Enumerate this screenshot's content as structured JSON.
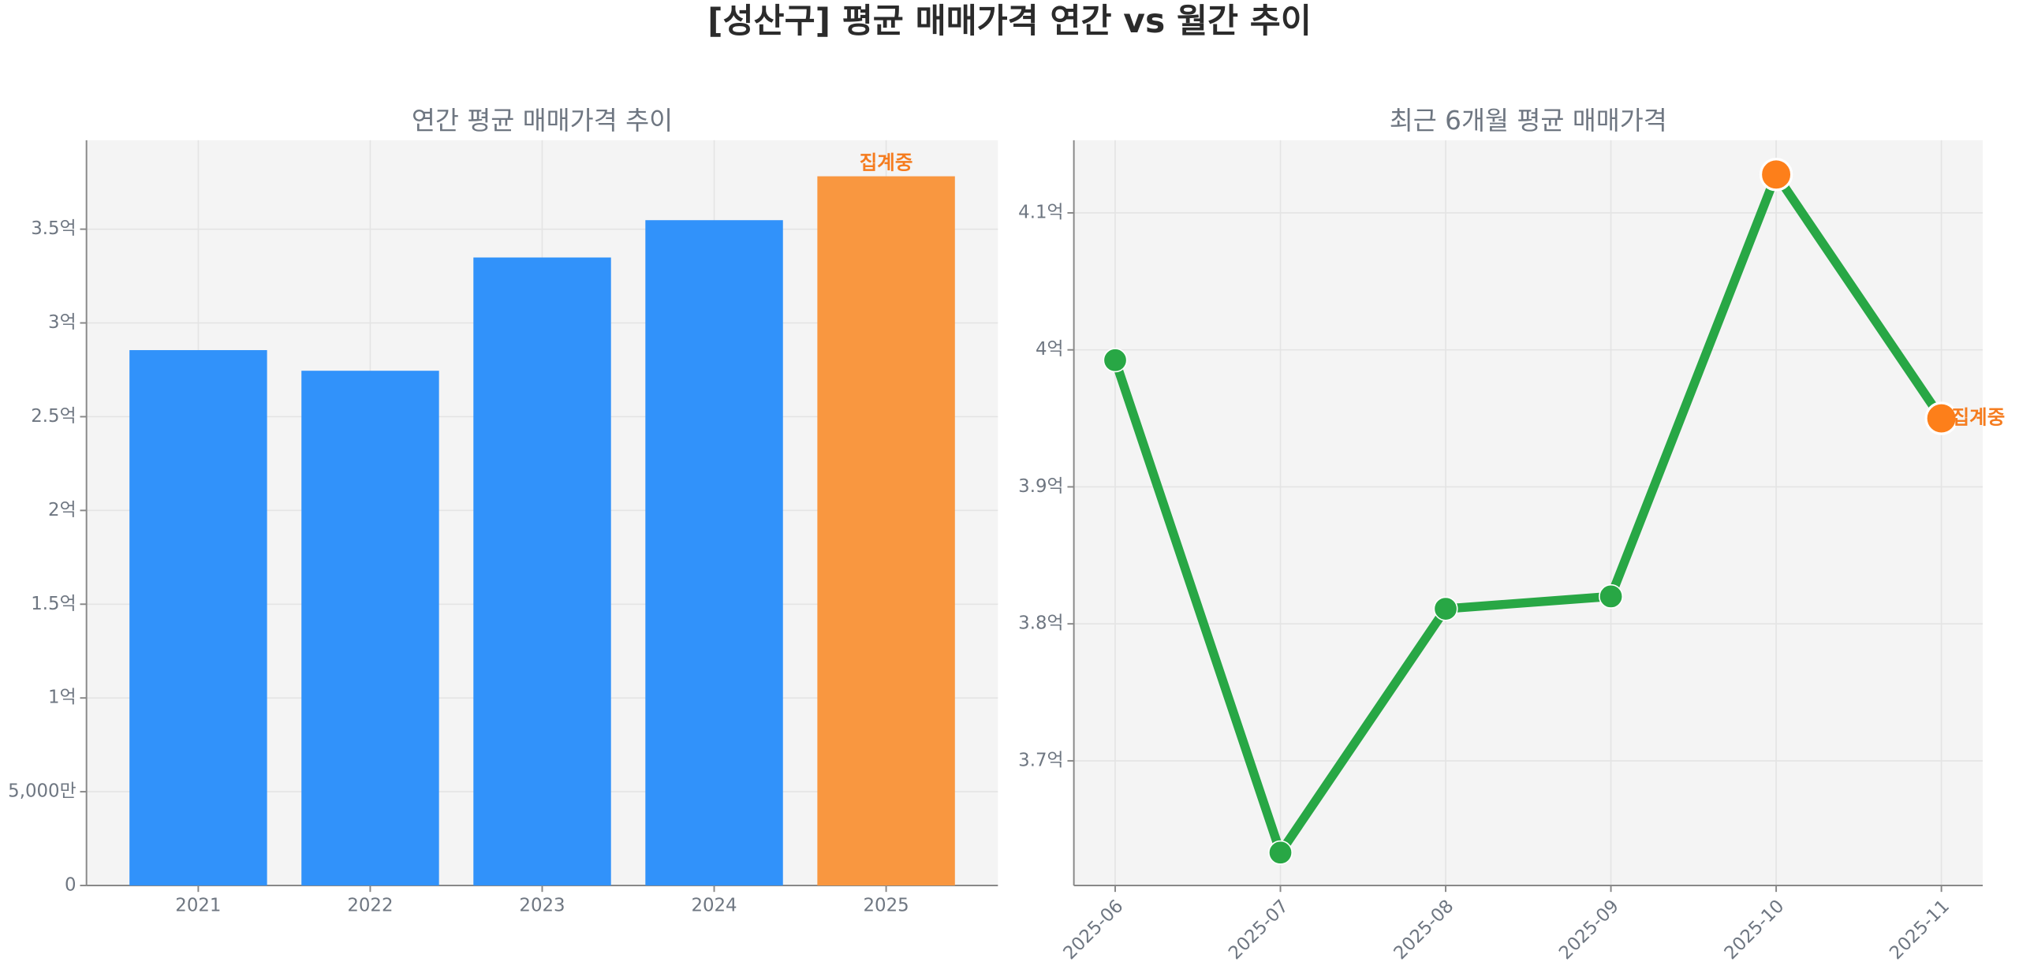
{
  "title": "[성산구] 평균 매매가격 연간 vs 월간 추이",
  "chart_data": [
    {
      "type": "bar",
      "title": "연간 평균 매매가격 추이",
      "categories": [
        "2021",
        "2022",
        "2023",
        "2024",
        "2025"
      ],
      "values": [
        2.855,
        2.745,
        3.349,
        3.548,
        3.782
      ],
      "colors": [
        "#3192fa",
        "#3192fa",
        "#3192fa",
        "#3192fa",
        "#f99740"
      ],
      "ylim": [
        0,
        3.974
      ],
      "yticks": [
        0,
        {
          "value": 0.5,
          "label": "5,000만"
        },
        {
          "value": 1,
          "label": "1억"
        },
        {
          "value": 1.5,
          "label": "1.5억"
        },
        {
          "value": 2,
          "label": "2억"
        },
        {
          "value": 2.5,
          "label": "2.5억"
        },
        {
          "value": 3,
          "label": "3억"
        },
        {
          "value": 3.5,
          "label": "3.5억"
        }
      ],
      "grid": true,
      "annotation": {
        "text": "집계중",
        "x": "2025",
        "color": "#f57c1f"
      }
    },
    {
      "type": "line",
      "title": "최근 6개월 평균 매매가격",
      "categories": [
        "2025-06",
        "2025-07",
        "2025-08",
        "2025-09",
        "2025-10",
        "2025-11"
      ],
      "values": [
        3.9925,
        3.633,
        3.811,
        3.82,
        4.128,
        3.95
      ],
      "color": "#28a745",
      "marker_colors": [
        "#28a745",
        "#28a745",
        "#28a745",
        "#28a745",
        "#fd7f1a",
        "#fd7f1a"
      ],
      "ylim": [
        3.609,
        4.153
      ],
      "yticks": [
        {
          "value": 3.7,
          "label": "3.7억"
        },
        {
          "value": 3.8,
          "label": "3.8억"
        },
        {
          "value": 3.9,
          "label": "3.9억"
        },
        {
          "value": 4,
          "label": "4억"
        },
        {
          "value": 4.1,
          "label": "4.1억"
        }
      ],
      "grid": true,
      "annotation": {
        "text": "집계중",
        "x": "2025-11",
        "color": "#f57c1f"
      }
    }
  ]
}
